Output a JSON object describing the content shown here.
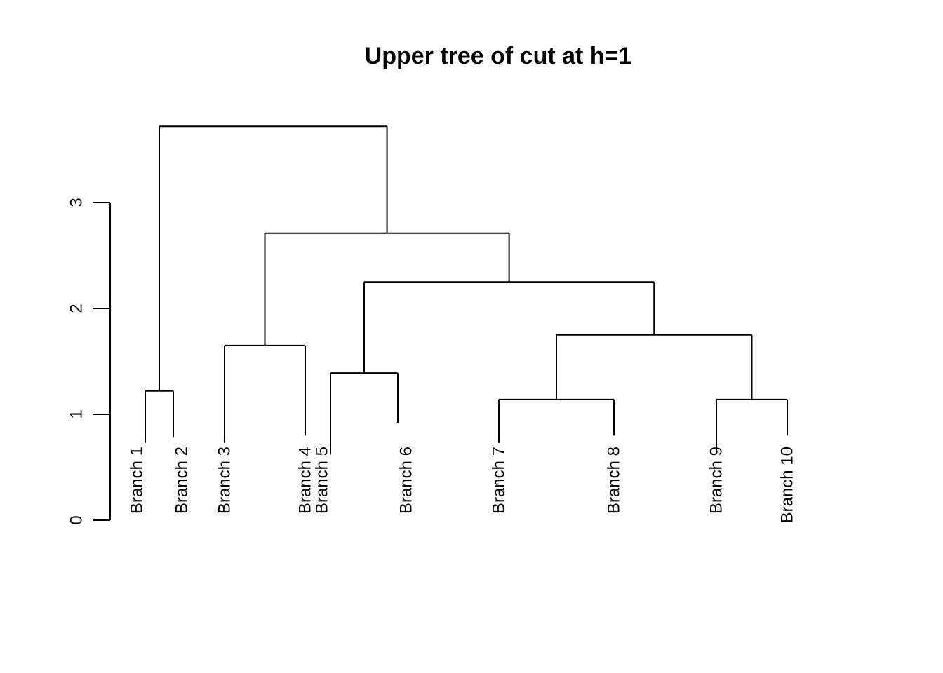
{
  "chart_data": {
    "type": "dendrogram",
    "title": "Upper tree of cut at h=1",
    "xlabel": "",
    "ylabel": "",
    "ylim": [
      0,
      3.7
    ],
    "y_ticks": [
      0,
      1,
      2,
      3
    ],
    "y_tick_labels": [
      "0",
      "1",
      "2",
      "3"
    ],
    "leaves": [
      {
        "label": "Branch 1",
        "height": 0.73
      },
      {
        "label": "Branch 2",
        "height": 0.78
      },
      {
        "label": "Branch 3",
        "height": 0.73
      },
      {
        "label": "Branch 4",
        "height": 0.8
      },
      {
        "label": "Branch 5",
        "height": 0.62
      },
      {
        "label": "Branch 6",
        "height": 0.92
      },
      {
        "label": "Branch 7",
        "height": 0.73
      },
      {
        "label": "Branch 8",
        "height": 0.8
      },
      {
        "label": "Branch 9",
        "height": 0.63
      },
      {
        "label": "Branch 10",
        "height": 0.8
      }
    ],
    "merges": [
      {
        "left": "Branch 1",
        "right": "Branch 2",
        "height": 1.22
      },
      {
        "left": "Branch 3",
        "right": "Branch 4",
        "height": 1.65
      },
      {
        "left": "Branch 5",
        "right": "Branch 6",
        "height": 1.39
      },
      {
        "left": "Branch 7",
        "right": "Branch 8",
        "height": 1.14
      },
      {
        "left": "Branch 9",
        "right": "Branch 10",
        "height": 1.14
      },
      {
        "left": "Branch 7-8",
        "right": "Branch 9-10",
        "height": 1.75
      },
      {
        "left": "Branch 5-6",
        "right": "Branch 7-10",
        "height": 2.25
      },
      {
        "left": "Branch 3-4",
        "right": "Branch 5-10",
        "height": 2.71
      },
      {
        "left": "Branch 1-2",
        "right": "Branch 3-10",
        "height": 3.72
      }
    ]
  }
}
